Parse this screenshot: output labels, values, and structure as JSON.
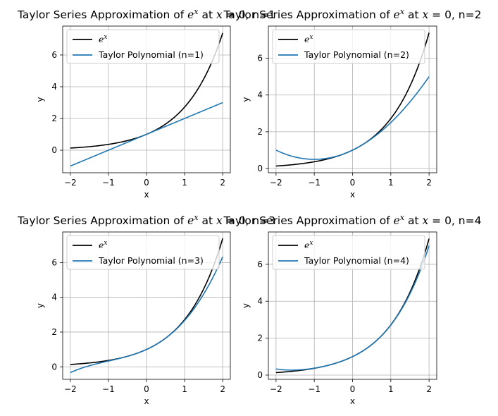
{
  "chart_data": [
    {
      "type": "line",
      "title_prefix": "Taylor Series Approximation of ",
      "title_exp": "e",
      "title_exp_sup": "x",
      "title_mid": " at ",
      "title_math": "x",
      "title_suffix": " = 0, n=1",
      "xlabel": "x",
      "ylabel": "y",
      "xlim": [
        -2.2,
        2.2
      ],
      "ylim": [
        -1.42,
        7.82
      ],
      "xticks": [
        -2,
        -1,
        0,
        1,
        2
      ],
      "xtick_labels": [
        "−2",
        "−1",
        "0",
        "1",
        "2"
      ],
      "yticks": [
        0,
        2,
        4,
        6
      ],
      "ytick_labels": [
        "0",
        "2",
        "4",
        "6"
      ],
      "grid": true,
      "legend_location": "top-left",
      "series": [
        {
          "name": "e",
          "name_sup": "x",
          "color": "#000000",
          "fn": "exp"
        },
        {
          "name": "Taylor Polynomial (n=1)",
          "color": "#1f77b4",
          "fn": "taylor",
          "order": 1
        }
      ],
      "x": [
        -2,
        -1.5,
        -1,
        -0.5,
        0,
        0.5,
        1,
        1.5,
        2
      ],
      "exp_values": [
        0.135,
        0.223,
        0.368,
        0.607,
        1.0,
        1.649,
        2.718,
        4.482,
        7.389
      ],
      "taylor_values": [
        -1.0,
        -0.5,
        0.0,
        0.5,
        1.0,
        1.5,
        2.0,
        2.5,
        3.0
      ]
    },
    {
      "type": "line",
      "title_prefix": "Taylor Series Approximation of ",
      "title_exp": "e",
      "title_exp_sup": "x",
      "title_mid": " at ",
      "title_math": "x",
      "title_suffix": " = 0, n=2",
      "xlabel": "x",
      "ylabel": "y",
      "xlim": [
        -2.2,
        2.2
      ],
      "ylim": [
        -0.23,
        7.75
      ],
      "xticks": [
        -2,
        -1,
        0,
        1,
        2
      ],
      "xtick_labels": [
        "−2",
        "−1",
        "0",
        "1",
        "2"
      ],
      "yticks": [
        0,
        2,
        4,
        6
      ],
      "ytick_labels": [
        "0",
        "2",
        "4",
        "6"
      ],
      "grid": true,
      "legend_location": "top-left",
      "series": [
        {
          "name": "e",
          "name_sup": "x",
          "color": "#000000",
          "fn": "exp"
        },
        {
          "name": "Taylor Polynomial (n=2)",
          "color": "#1f77b4",
          "fn": "taylor",
          "order": 2
        }
      ],
      "x": [
        -2,
        -1.5,
        -1,
        -0.5,
        0,
        0.5,
        1,
        1.5,
        2
      ],
      "exp_values": [
        0.135,
        0.223,
        0.368,
        0.607,
        1.0,
        1.649,
        2.718,
        4.482,
        7.389
      ],
      "taylor_values": [
        1.0,
        0.625,
        0.5,
        0.625,
        1.0,
        1.625,
        2.5,
        3.625,
        5.0
      ]
    },
    {
      "type": "line",
      "title_prefix": "Taylor Series Approximation of ",
      "title_exp": "e",
      "title_exp_sup": "x",
      "title_mid": " at ",
      "title_math": "x",
      "title_suffix": " = 0, n=3",
      "xlabel": "x",
      "ylabel": "y",
      "xlim": [
        -2.2,
        2.2
      ],
      "ylim": [
        -0.72,
        7.76
      ],
      "xticks": [
        -2,
        -1,
        0,
        1,
        2
      ],
      "xtick_labels": [
        "−2",
        "−1",
        "0",
        "1",
        "2"
      ],
      "yticks": [
        0,
        2,
        4,
        6
      ],
      "ytick_labels": [
        "0",
        "2",
        "4",
        "6"
      ],
      "grid": true,
      "legend_location": "top-left",
      "series": [
        {
          "name": "e",
          "name_sup": "x",
          "color": "#000000",
          "fn": "exp"
        },
        {
          "name": "Taylor Polynomial (n=3)",
          "color": "#1f77b4",
          "fn": "taylor",
          "order": 3
        }
      ],
      "x": [
        -2,
        -1.5,
        -1,
        -0.5,
        0,
        0.5,
        1,
        1.5,
        2
      ],
      "exp_values": [
        0.135,
        0.223,
        0.368,
        0.607,
        1.0,
        1.649,
        2.718,
        4.482,
        7.389
      ],
      "taylor_values": [
        -0.333,
        0.063,
        0.333,
        0.604,
        1.0,
        1.646,
        2.667,
        4.188,
        6.333
      ]
    },
    {
      "type": "line",
      "title_prefix": "Taylor Series Approximation of ",
      "title_exp": "e",
      "title_exp_sup": "x",
      "title_mid": " at ",
      "title_math": "x",
      "title_suffix": " = 0, n=4",
      "xlabel": "x",
      "ylabel": "y",
      "xlim": [
        -2.2,
        2.2
      ],
      "ylim": [
        -0.23,
        7.75
      ],
      "xticks": [
        -2,
        -1,
        0,
        1,
        2
      ],
      "xtick_labels": [
        "−2",
        "−1",
        "0",
        "1",
        "2"
      ],
      "yticks": [
        0,
        2,
        4,
        6
      ],
      "ytick_labels": [
        "0",
        "2",
        "4",
        "6"
      ],
      "grid": true,
      "legend_location": "top-left",
      "series": [
        {
          "name": "e",
          "name_sup": "x",
          "color": "#000000",
          "fn": "exp"
        },
        {
          "name": "Taylor Polynomial (n=4)",
          "color": "#1f77b4",
          "fn": "taylor",
          "order": 4
        }
      ],
      "x": [
        -2,
        -1.5,
        -1,
        -0.5,
        0,
        0.5,
        1,
        1.5,
        2
      ],
      "exp_values": [
        0.135,
        0.223,
        0.368,
        0.607,
        1.0,
        1.649,
        2.718,
        4.482,
        7.389
      ],
      "taylor_values": [
        0.333,
        0.273,
        0.375,
        0.607,
        1.0,
        1.648,
        2.708,
        4.398,
        7.0
      ]
    }
  ]
}
